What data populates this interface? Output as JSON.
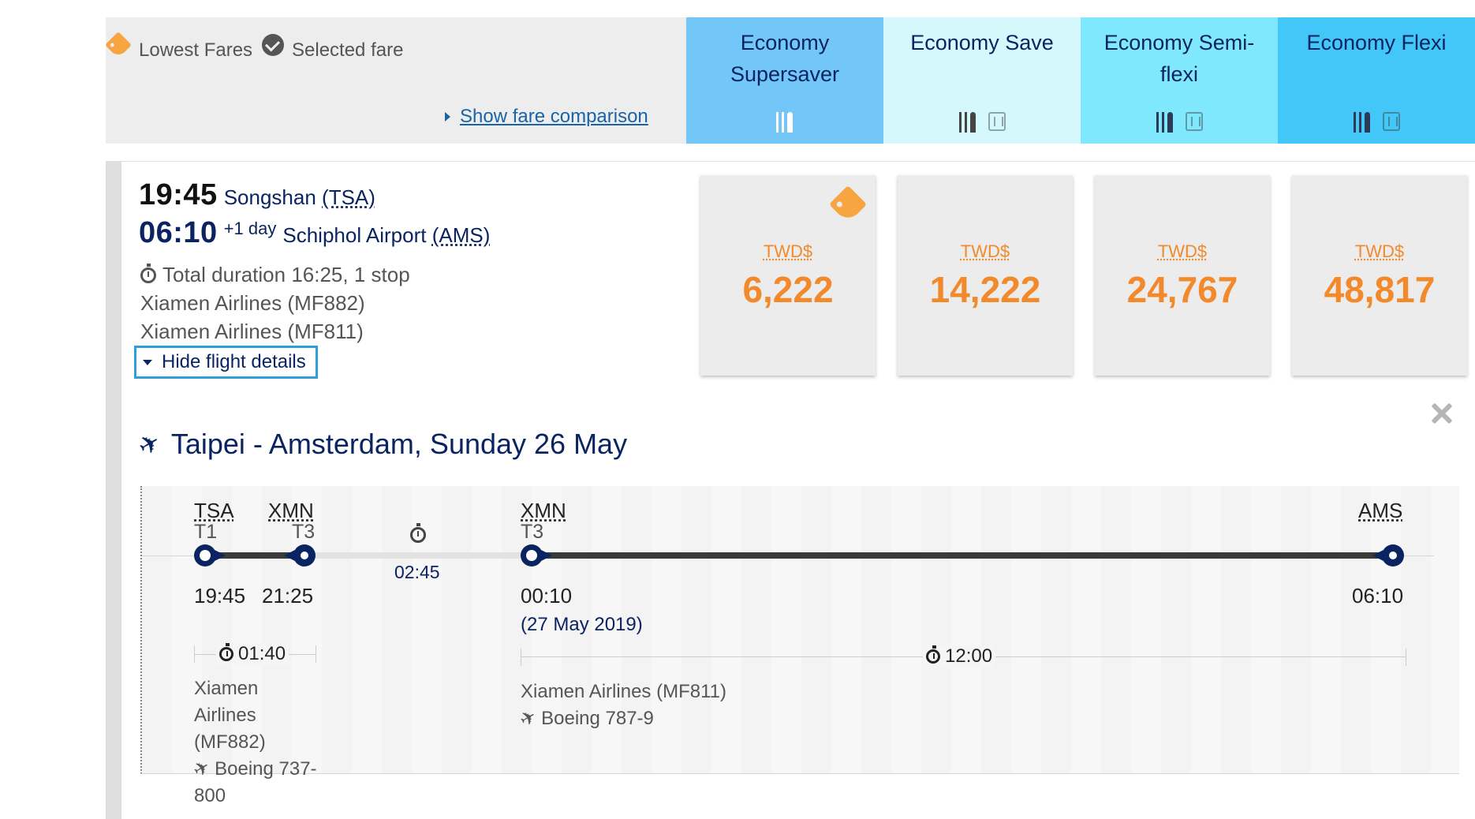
{
  "legend": {
    "lowest_fares": "Lowest Fares",
    "selected_fare": "Selected fare",
    "show_fare_comparison": "Show fare comparison"
  },
  "fare_columns": [
    {
      "name": "Economy Supersaver",
      "color": "#73c7f8",
      "icons": [
        "meal-icon"
      ]
    },
    {
      "name": "Economy Save",
      "color": "#d5f8fd",
      "icons": [
        "meal-icon",
        "seat-icon"
      ]
    },
    {
      "name": "Economy Semi-flexi",
      "color": "#7fe8fd",
      "icons": [
        "meal-icon",
        "seat-icon"
      ]
    },
    {
      "name": "Economy Flexi",
      "color": "#42c7f8",
      "icons": [
        "meal-icon",
        "seat-icon"
      ]
    }
  ],
  "flight": {
    "departure_time": "19:45",
    "departure_airport": "Songshan",
    "departure_code": "(TSA)",
    "arrival_time": "06:10",
    "arrival_day_offset": "+1 day",
    "arrival_airport": "Schiphol Airport",
    "arrival_code": "(AMS)",
    "duration": "Total duration 16:25, 1 stop",
    "carrier_1": "Xiamen Airlines (MF882)",
    "carrier_2": "Xiamen Airlines (MF811)",
    "hide_details": "Hide flight details"
  },
  "prices": [
    {
      "currency": "TWD$",
      "amount": "6,222",
      "lowest": true
    },
    {
      "currency": "TWD$",
      "amount": "14,222",
      "lowest": false
    },
    {
      "currency": "TWD$",
      "amount": "24,767",
      "lowest": false
    },
    {
      "currency": "TWD$",
      "amount": "48,817",
      "lowest": false
    }
  ],
  "details": {
    "route_title": "Taipei - Amsterdam, Sunday 26 May",
    "segment_1": {
      "from_code": "TSA",
      "from_terminal": "T1",
      "to_code": "XMN",
      "to_terminal": "T3",
      "dep_time": "19:45",
      "arr_time": "21:25",
      "duration": "01:40",
      "airline": "Xiamen Airlines (MF882)",
      "airline_line1": "Xiamen",
      "airline_line2": "Airlines",
      "airline_line3": "(MF882)",
      "aircraft_line1": "Boeing 737-",
      "aircraft_line2": "800"
    },
    "layover": {
      "duration": "02:45"
    },
    "segment_2": {
      "from_code": "XMN",
      "from_terminal": "T3",
      "to_code": "AMS",
      "dep_time": "00:10",
      "dep_date": "(27 May 2019)",
      "arr_time": "06:10",
      "duration": "12:00",
      "airline": "Xiamen Airlines (MF811)",
      "aircraft": "Boeing 787-9"
    }
  },
  "colors": {
    "accent_navy": "#0a2461",
    "price_orange": "#f28a2c",
    "link_blue": "#1a63a6",
    "focus_blue": "#2e9fd9"
  }
}
